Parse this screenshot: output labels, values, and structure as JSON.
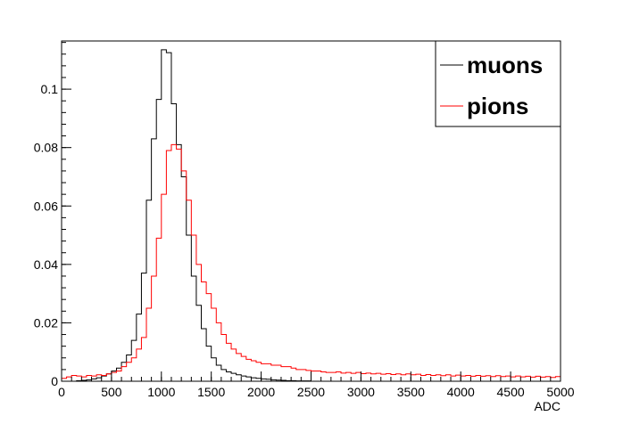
{
  "chart_data": {
    "type": "line",
    "subtype": "step-histogram",
    "title": "",
    "xlabel": "ADC",
    "ylabel": "",
    "xlim": [
      0,
      5000
    ],
    "ylim": [
      0,
      0.1165
    ],
    "bin_width": 50,
    "x_ticks": [
      0,
      500,
      1000,
      1500,
      2000,
      2500,
      3000,
      3500,
      4000,
      4500,
      5000
    ],
    "x_tick_labels": [
      "0",
      "500",
      "1000",
      "1500",
      "2000",
      "2500",
      "3000",
      "3500",
      "4000",
      "4500",
      "5000"
    ],
    "y_ticks": [
      0,
      0.02,
      0.04,
      0.06,
      0.08,
      0.1
    ],
    "y_tick_labels": [
      "0",
      "0.02",
      "0.04",
      "0.06",
      "0.08",
      "0.1"
    ],
    "grid": false,
    "legend_position": "top-right",
    "legend_style": "framed box, bold labels",
    "series": [
      {
        "name": "muons",
        "color": "#000000",
        "values": [
          0,
          0,
          0,
          0.0002,
          0.0003,
          0.0005,
          0.0008,
          0.0012,
          0.0018,
          0.0025,
          0.0035,
          0.0045,
          0.0065,
          0.009,
          0.014,
          0.023,
          0.037,
          0.062,
          0.083,
          0.0965,
          0.1135,
          0.1125,
          0.095,
          0.081,
          0.07,
          0.05,
          0.036,
          0.026,
          0.018,
          0.012,
          0.008,
          0.0055,
          0.004,
          0.0032,
          0.0027,
          0.0022,
          0.0018,
          0.0015,
          0.0012,
          0.001,
          0.0008,
          0.0007,
          0.0005,
          0.0004,
          0.0003,
          0.0002,
          0.0002,
          0.0001,
          0.0001,
          0.0001,
          0,
          0,
          0,
          0,
          0,
          0,
          0,
          0,
          0,
          0,
          0,
          0,
          0,
          0,
          0,
          0,
          0,
          0,
          0,
          0,
          0,
          0,
          0,
          0,
          0,
          0,
          0,
          0,
          0,
          0,
          0,
          0,
          0,
          0,
          0,
          0,
          0,
          0,
          0,
          0,
          0,
          0,
          0,
          0,
          0,
          0,
          0,
          0,
          0,
          0
        ]
      },
      {
        "name": "pions",
        "color": "#ff0000",
        "values": [
          0.001,
          0.0015,
          0.002,
          0.0018,
          0.0015,
          0.002,
          0.0018,
          0.0022,
          0.002,
          0.0025,
          0.003,
          0.0035,
          0.005,
          0.0065,
          0.008,
          0.011,
          0.015,
          0.025,
          0.036,
          0.049,
          0.064,
          0.079,
          0.081,
          0.0795,
          0.072,
          0.062,
          0.05,
          0.04,
          0.034,
          0.03,
          0.025,
          0.02,
          0.016,
          0.013,
          0.011,
          0.0095,
          0.0085,
          0.0075,
          0.007,
          0.0065,
          0.006,
          0.006,
          0.0055,
          0.0055,
          0.005,
          0.005,
          0.0045,
          0.004,
          0.004,
          0.0037,
          0.0035,
          0.0035,
          0.0032,
          0.003,
          0.003,
          0.0032,
          0.0028,
          0.003,
          0.0027,
          0.003,
          0.0026,
          0.0028,
          0.0025,
          0.0027,
          0.0024,
          0.0026,
          0.0023,
          0.0025,
          0.0022,
          0.0025,
          0.0022,
          0.0024,
          0.002,
          0.0023,
          0.002,
          0.0022,
          0.0019,
          0.0022,
          0.0018,
          0.0021,
          0.0018,
          0.002,
          0.0017,
          0.002,
          0.0017,
          0.0019,
          0.0016,
          0.0019,
          0.0016,
          0.0018,
          0.0015,
          0.0018,
          0.0015,
          0.0017,
          0.0014,
          0.0017,
          0.0014,
          0.0016,
          0.0013,
          0.0016
        ]
      }
    ]
  }
}
